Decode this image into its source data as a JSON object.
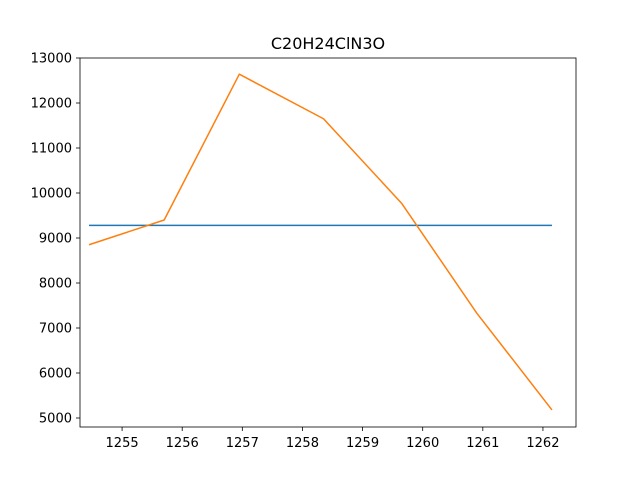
{
  "chart_data": {
    "type": "line",
    "title": "C20H24ClN3O",
    "xlabel": "",
    "ylabel": "",
    "xlim": [
      1254.3,
      1262.55
    ],
    "ylim": [
      4800,
      13000
    ],
    "xticks": [
      1255,
      1256,
      1257,
      1258,
      1259,
      1260,
      1261,
      1262
    ],
    "yticks": [
      5000,
      6000,
      7000,
      8000,
      9000,
      10000,
      11000,
      12000,
      13000
    ],
    "grid": false,
    "series": [
      {
        "color": "#1f77b4",
        "x": [
          1254.45,
          1262.15
        ],
        "y": [
          9280,
          9280
        ]
      },
      {
        "color": "#ff7f0e",
        "x": [
          1254.45,
          1255.7,
          1256.95,
          1258.35,
          1259.65,
          1260.9,
          1262.15
        ],
        "y": [
          8850,
          9400,
          12640,
          11650,
          9770,
          7330,
          5180
        ]
      }
    ]
  }
}
